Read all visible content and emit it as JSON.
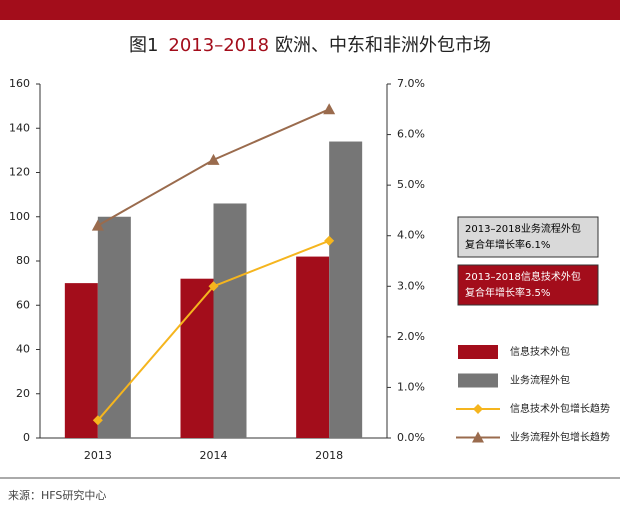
{
  "chart_data": {
    "type": "bar",
    "title": [
      "图1",
      "2013–2018",
      "欧洲、中东和非洲外包市场"
    ],
    "categories": [
      "2013",
      "2014",
      "2018"
    ],
    "series": [
      {
        "name": "信息技术外包",
        "type": "bar",
        "color": "#a30d1b",
        "values": [
          70,
          72,
          82
        ]
      },
      {
        "name": "业务流程外包",
        "type": "bar",
        "color": "#767676",
        "values": [
          100,
          106,
          134
        ]
      },
      {
        "name": "信息技术外包增长趋势",
        "type": "line",
        "axis": "y2",
        "marker": "diamond",
        "color": "#f5b51e",
        "values": [
          0.35,
          3.0,
          3.9
        ]
      },
      {
        "name": "业务流程外包增长趋势",
        "type": "line",
        "axis": "y2",
        "marker": "triangle",
        "color": "#9a6b4d",
        "values": [
          4.2,
          5.5,
          6.5
        ]
      }
    ],
    "ylim": [
      0,
      160
    ],
    "yticks": [
      0,
      20,
      40,
      60,
      80,
      100,
      120,
      140,
      160
    ],
    "y2lim": [
      0,
      7
    ],
    "y2ticks": [
      {
        "value": 0,
        "label": "0.0%"
      },
      {
        "value": 1,
        "label": "1.0%"
      },
      {
        "value": 2,
        "label": "2.0%"
      },
      {
        "value": 3,
        "label": "3.0%"
      },
      {
        "value": 4,
        "label": "4.0%"
      },
      {
        "value": 5,
        "label": "5.0%"
      },
      {
        "value": 6,
        "label": "6.0%"
      },
      {
        "value": 7,
        "label": "7.0%"
      }
    ],
    "grid": false,
    "annotations": [
      {
        "lines": [
          "2013–2018业务流程外包",
          "复合年增长率6.1%"
        ],
        "color": "#d9d9d9",
        "text_color": "#000000"
      },
      {
        "lines": [
          "2013–2018信息技术外包",
          "复合年增长率3.5%"
        ],
        "color": "#a30d1b",
        "text_color": "#ffffff"
      }
    ],
    "source": "来源：HFS研究中心"
  }
}
